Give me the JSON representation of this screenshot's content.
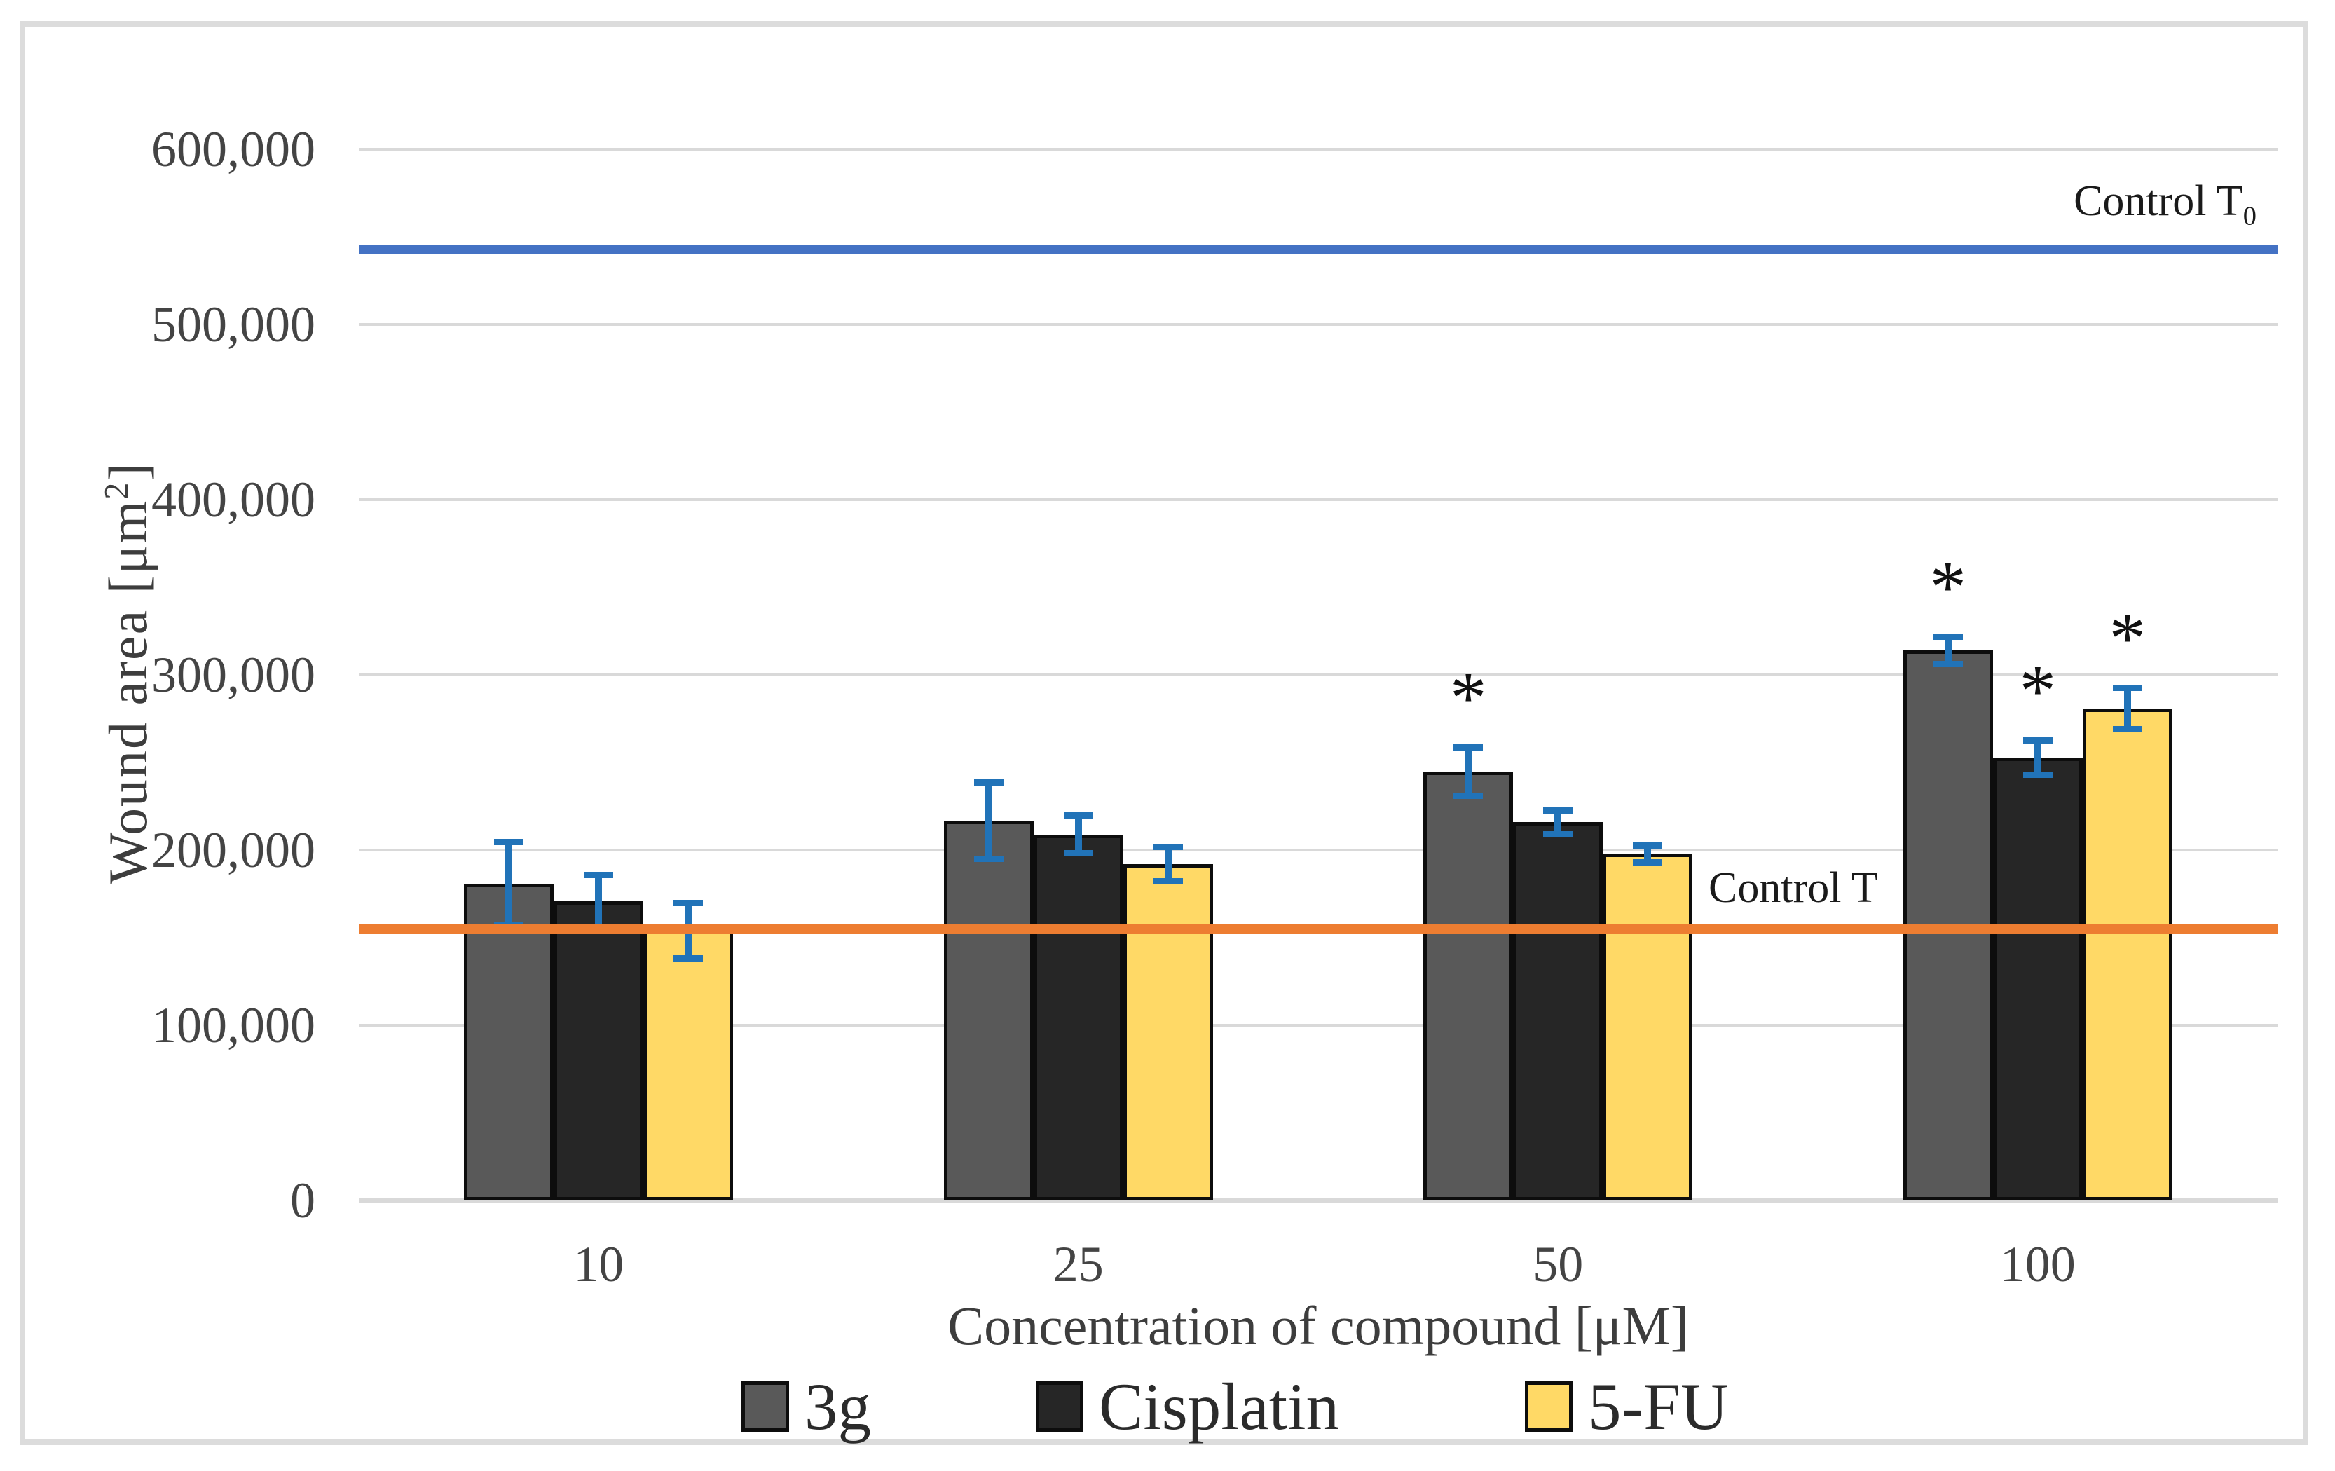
{
  "figure": {
    "y_axis": {
      "title_pre": "Wound area [μm",
      "title_sup": "2",
      "title_post": "]",
      "tick_labels": [
        "0",
        "100,000",
        "200,000",
        "300,000",
        "400,000",
        "500,000",
        "600,000"
      ]
    },
    "x_axis": {
      "title": "Concentration of compound [μM]",
      "tick_labels": [
        "10",
        "25",
        "50",
        "100"
      ]
    },
    "legend": [
      {
        "label": "3g",
        "color": "#595959"
      },
      {
        "label": "Cisplatin",
        "color": "#262626"
      },
      {
        "label": "5-FU",
        "color": "#FFD966"
      }
    ],
    "annotations": {
      "control_t0_base": "Control T",
      "control_t0_sub": "0",
      "control_t": "Control T",
      "star": "*"
    }
  },
  "chart_data": {
    "type": "bar",
    "title": "",
    "categories": [
      "10",
      "25",
      "50",
      "100"
    ],
    "xlabel": "Concentration of compound [μM]",
    "ylabel": "Wound area [μm²]",
    "ylim": [
      0,
      600000
    ],
    "ytick_step": 100000,
    "grid": true,
    "grid_color": "#d9d9d9",
    "legend_position": "bottom",
    "series": [
      {
        "name": "3g",
        "color": "#595959",
        "values": [
          181000,
          217000,
          245000,
          314000
        ],
        "errors": [
          24000,
          22000,
          14000,
          8000
        ],
        "significant": [
          false,
          false,
          true,
          true
        ]
      },
      {
        "name": "Cisplatin",
        "color": "#262626",
        "values": [
          171000,
          209000,
          216000,
          253000
        ],
        "errors": [
          15000,
          11000,
          7000,
          10000
        ],
        "significant": [
          false,
          false,
          false,
          true
        ]
      },
      {
        "name": "5-FU",
        "color": "#FFD966",
        "values": [
          154000,
          192000,
          198000,
          281000
        ],
        "errors": [
          16000,
          10000,
          5000,
          12000
        ],
        "significant": [
          false,
          false,
          false,
          true
        ]
      }
    ],
    "reference_lines": [
      {
        "id": "t0",
        "label": "Control T0",
        "value": 543000,
        "color": "#4472C4"
      },
      {
        "id": "t",
        "label": "Control T",
        "value": 155000,
        "color": "#ED7D31"
      }
    ],
    "error_bar_color": "#2173B8"
  }
}
